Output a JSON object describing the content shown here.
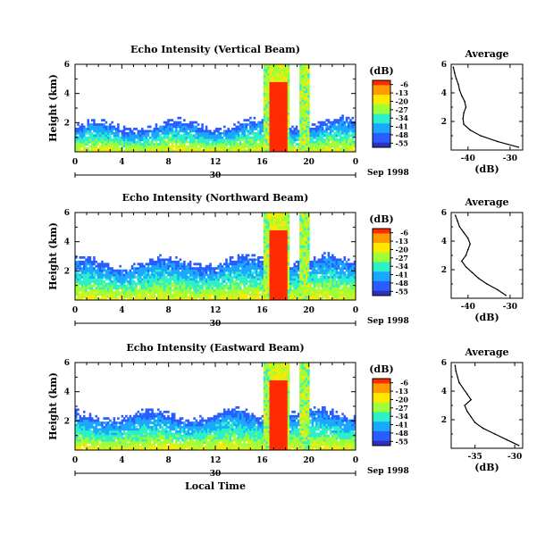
{
  "date_label": "Sep 1998",
  "bottom_xlabel": "Local Time",
  "colorbar": {
    "unit": "(dB)",
    "ticks": [
      "-6",
      "-13",
      "-20",
      "-27",
      "-34",
      "-41",
      "-48",
      "-55"
    ],
    "colors": [
      "#ff2a00",
      "#ff9a00",
      "#ffe800",
      "#9cff3a",
      "#2cf0c8",
      "#1aa8ff",
      "#2a5cff",
      "#3030c0"
    ]
  },
  "chart_data": [
    {
      "type": "heatmap",
      "title": "Echo Intensity (Vertical Beam)",
      "ylabel": "Height (km)",
      "yticks": [
        "2",
        "4",
        "6"
      ],
      "ylim": [
        0,
        6
      ],
      "xticks": [
        "0",
        "4",
        "8",
        "12",
        "16",
        "20",
        "0"
      ],
      "xlim": [
        0,
        24
      ],
      "day_label": "30",
      "zlim": [
        -55,
        -6
      ],
      "echo_top_km": 1.6,
      "rain_bands_hours": [
        [
          16.2,
          18.4
        ],
        [
          19.2,
          20.0
        ]
      ],
      "average_profile": {
        "title": "Average",
        "xlabel": "(dB)",
        "xticks": [
          "-40",
          "-30"
        ],
        "xlim": [
          -44,
          -27
        ],
        "yticks": [
          "2",
          "4",
          "6"
        ],
        "ylim": [
          0,
          6
        ],
        "heights": [
          0.2,
          0.6,
          1.0,
          1.4,
          1.8,
          2.2,
          2.6,
          3.0,
          3.4,
          3.8,
          4.2,
          4.6,
          5.0,
          5.4,
          5.8
        ],
        "values": [
          -28,
          -33,
          -37,
          -39.5,
          -41,
          -41.2,
          -41,
          -40.5,
          -40.8,
          -41.5,
          -42,
          -42.3,
          -42.8,
          -43.2,
          -43.5
        ]
      }
    },
    {
      "type": "heatmap",
      "title": "Echo Intensity (Northward Beam)",
      "ylabel": "Height (km)",
      "yticks": [
        "2",
        "4",
        "6"
      ],
      "ylim": [
        0,
        6
      ],
      "xticks": [
        "0",
        "4",
        "8",
        "12",
        "16",
        "20",
        "0"
      ],
      "xlim": [
        0,
        24
      ],
      "day_label": "30",
      "zlim": [
        -55,
        -6
      ],
      "echo_top_km": 2.4,
      "rain_bands_hours": [
        [
          16.2,
          18.4
        ],
        [
          19.2,
          20.0
        ]
      ],
      "average_profile": {
        "title": "Average",
        "xlabel": "(dB)",
        "xticks": [
          "-40",
          "-30"
        ],
        "xlim": [
          -44,
          -27
        ],
        "yticks": [
          "2",
          "4",
          "6"
        ],
        "ylim": [
          0,
          6
        ],
        "heights": [
          0.2,
          0.6,
          1.0,
          1.4,
          1.8,
          2.2,
          2.6,
          3.0,
          3.4,
          3.8,
          4.2,
          4.6,
          5.0,
          5.4,
          5.8
        ],
        "values": [
          -31,
          -33,
          -35.5,
          -37.5,
          -39,
          -40.5,
          -41.5,
          -40.5,
          -40,
          -39.5,
          -40,
          -41,
          -42,
          -42.5,
          -43
        ]
      }
    },
    {
      "type": "heatmap",
      "title": "Echo Intensity (Eastward Beam)",
      "ylabel": "Height (km)",
      "yticks": [
        "2",
        "4",
        "6"
      ],
      "ylim": [
        0,
        6
      ],
      "xticks": [
        "0",
        "4",
        "8",
        "12",
        "16",
        "20",
        "0"
      ],
      "xlim": [
        0,
        24
      ],
      "day_label": "30",
      "zlim": [
        -55,
        -6
      ],
      "echo_top_km": 2.2,
      "rain_bands_hours": [
        [
          16.2,
          18.4
        ],
        [
          19.2,
          20.0
        ]
      ],
      "average_profile": {
        "title": "Average",
        "xlabel": "(dB)",
        "xticks": [
          "-35",
          "-30"
        ],
        "xlim": [
          -38,
          -29
        ],
        "yticks": [
          "2",
          "4",
          "6"
        ],
        "ylim": [
          0,
          6
        ],
        "heights": [
          0.2,
          0.6,
          1.0,
          1.4,
          1.8,
          2.2,
          2.6,
          3.0,
          3.4,
          3.8,
          4.2,
          4.6,
          5.0,
          5.4,
          5.8
        ],
        "values": [
          -29.5,
          -31,
          -32.5,
          -34,
          -35,
          -35.5,
          -36,
          -36.3,
          -35.5,
          -36,
          -36.5,
          -37,
          -37.2,
          -37.4,
          -37.5
        ]
      }
    }
  ]
}
